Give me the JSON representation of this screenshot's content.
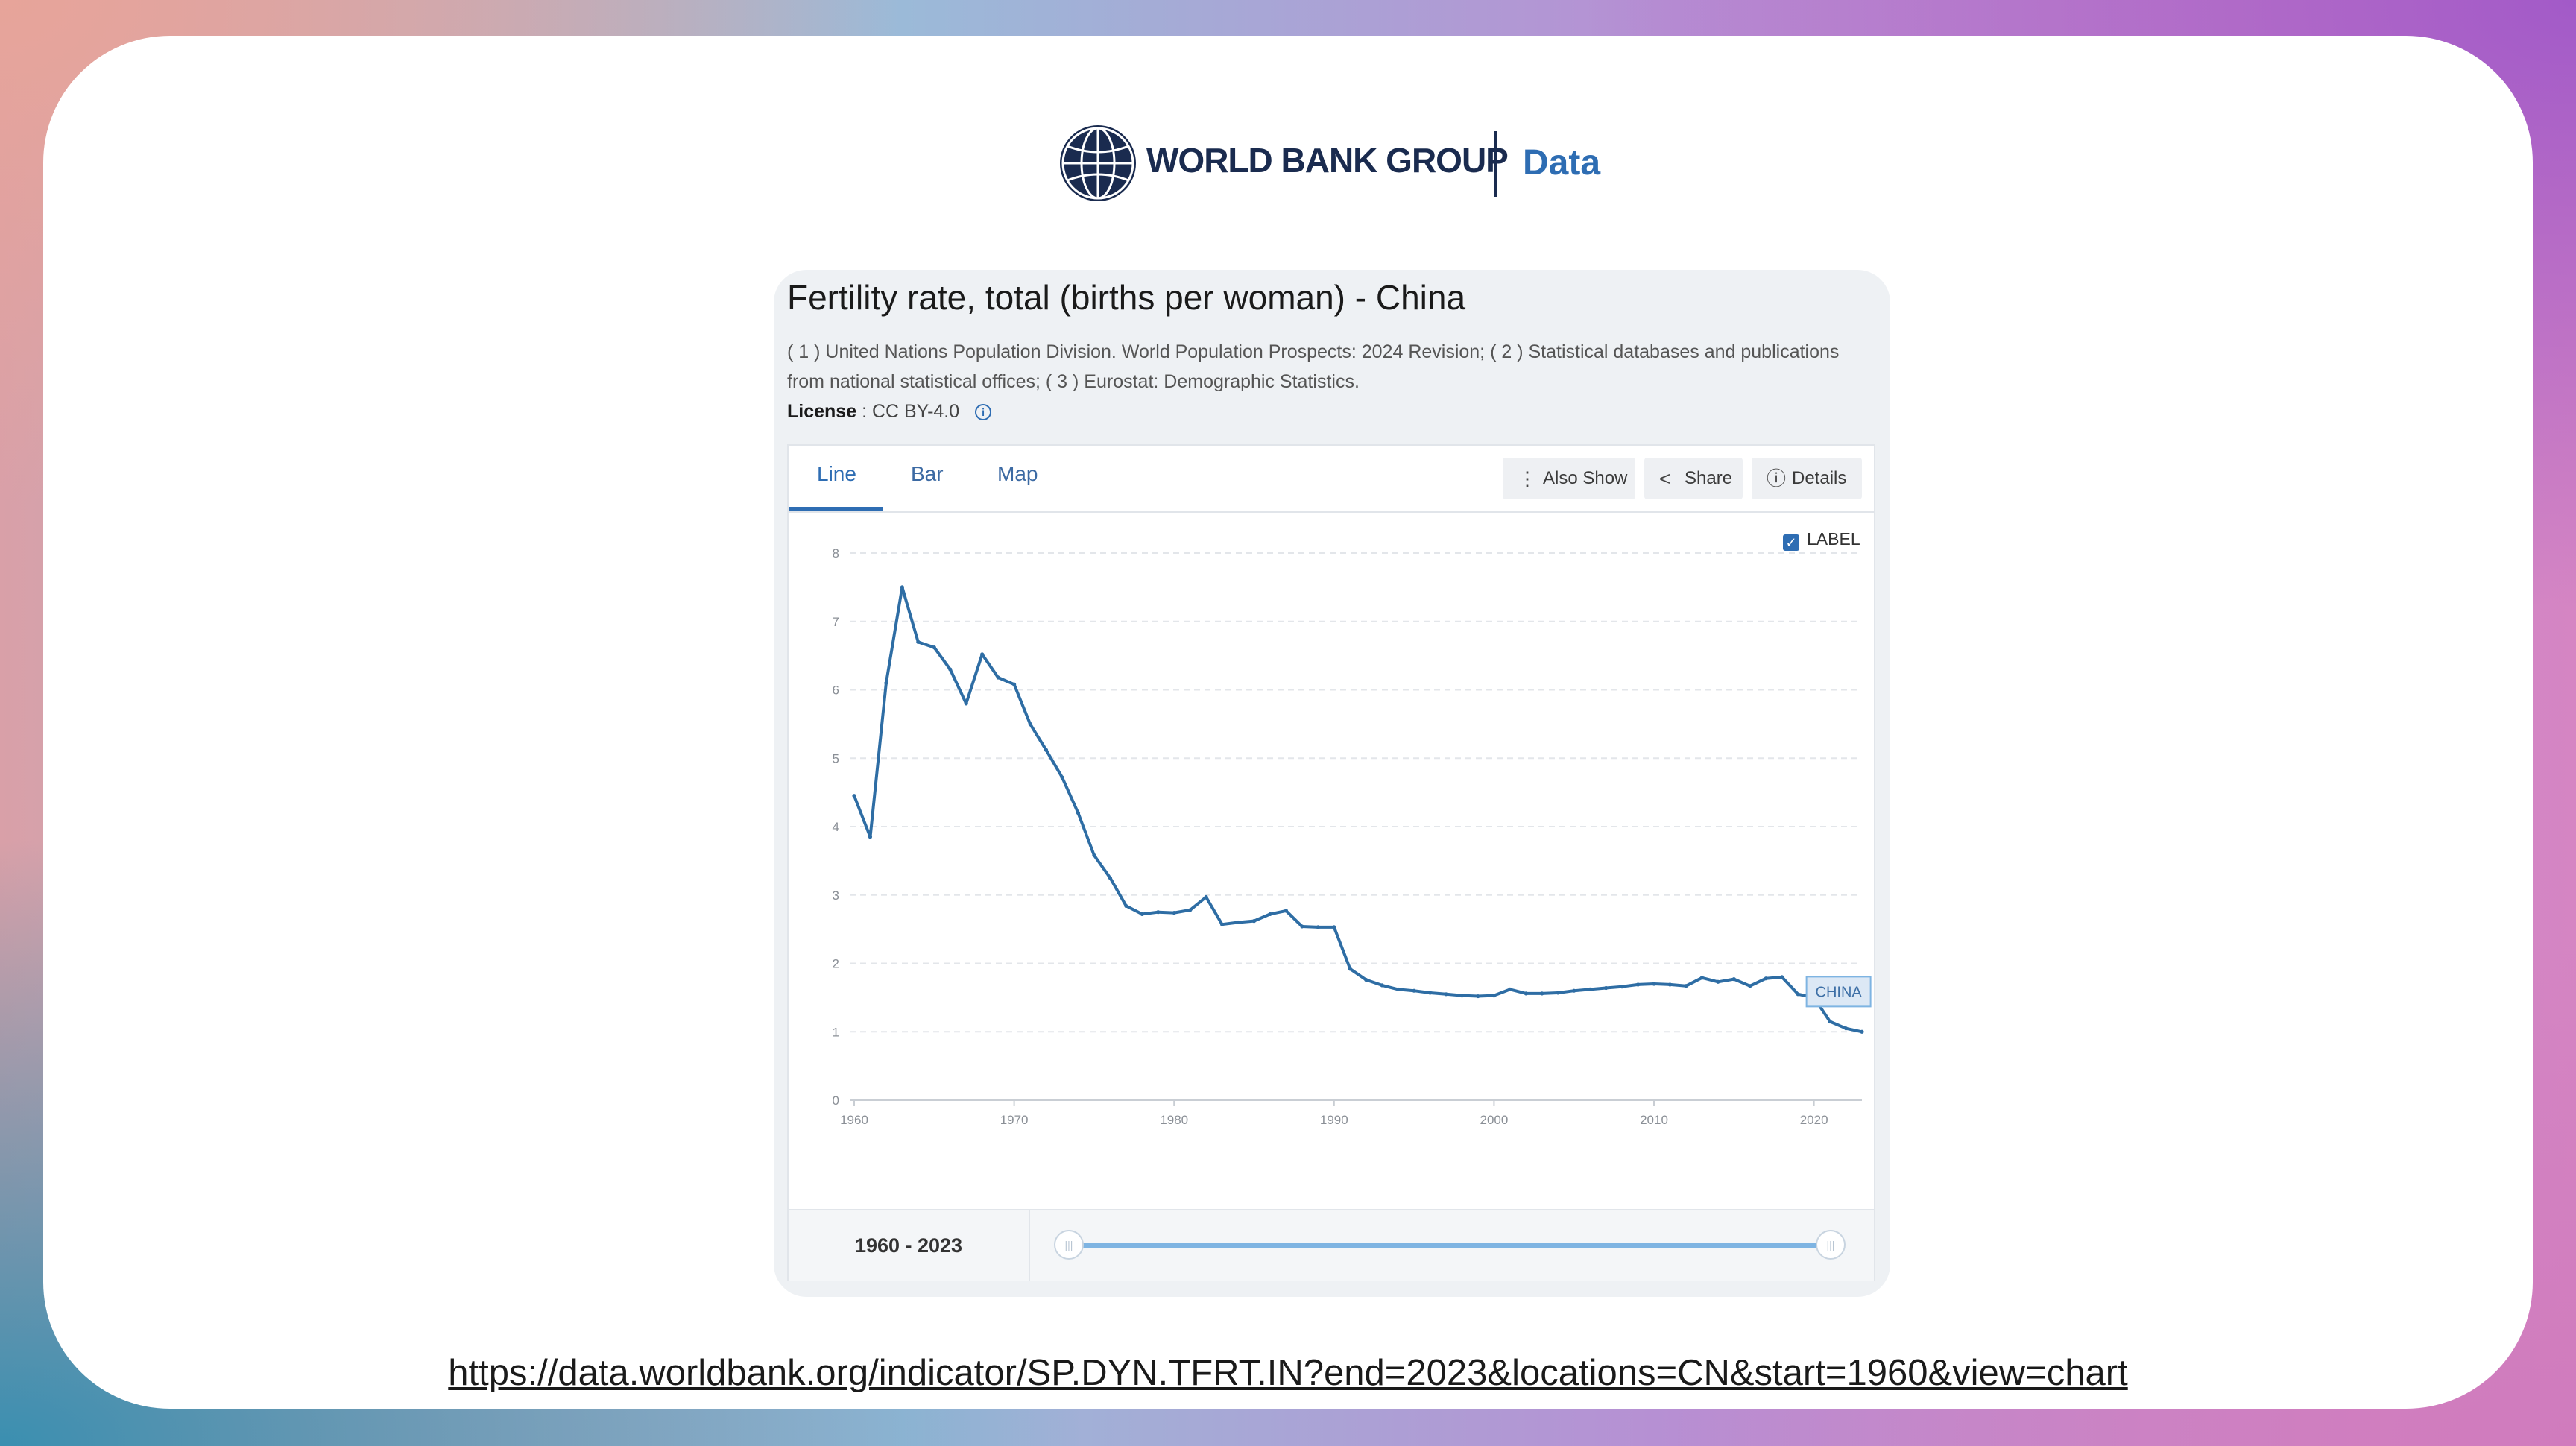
{
  "header": {
    "brand": "WORLD BANK GROUP",
    "section": "Data",
    "colors": {
      "brand_navy": "#1a2b4f",
      "accent_blue": "#2e6db3"
    }
  },
  "panel": {
    "title": "Fertility rate, total (births per woman) - China",
    "sources": "( 1 ) United Nations Population Division. World Population Prospects: 2024 Revision; ( 2 ) Statistical databases and publications from national statistical offices; ( 3 ) Eurostat: Demographic Statistics.",
    "license_label": "License",
    "license_value": ": CC BY-4.0"
  },
  "tabs": [
    {
      "label": "Line",
      "active": true
    },
    {
      "label": "Bar",
      "active": false
    },
    {
      "label": "Map",
      "active": false
    }
  ],
  "toolbar": {
    "also_show": "Also Show",
    "share": "Share",
    "details": "Details"
  },
  "label_toggle": {
    "text": "LABEL",
    "checked": true
  },
  "range": {
    "text": "1960 - 2023",
    "start": 1960,
    "end": 2023
  },
  "url": "https://data.worldbank.org/indicator/SP.DYN.TFRT.IN?end=2023&locations=CN&start=1960&view=chart",
  "chart_data": {
    "type": "line",
    "title": "",
    "xlabel": "",
    "ylabel": "",
    "xlim": [
      1960,
      2023
    ],
    "ylim": [
      0,
      8
    ],
    "grid": true,
    "x_ticks": [
      "1960",
      "1970",
      "1980",
      "1990",
      "2000",
      "2010",
      "2020"
    ],
    "y_ticks": [
      "0",
      "1",
      "2",
      "3",
      "4",
      "5",
      "6",
      "7",
      "8"
    ],
    "series": [
      {
        "name": "CHINA",
        "color": "#2e6da4",
        "x": [
          1960,
          1961,
          1962,
          1963,
          1964,
          1965,
          1966,
          1967,
          1968,
          1969,
          1970,
          1971,
          1972,
          1973,
          1974,
          1975,
          1976,
          1977,
          1978,
          1979,
          1980,
          1981,
          1982,
          1983,
          1984,
          1985,
          1986,
          1987,
          1988,
          1989,
          1990,
          1991,
          1992,
          1993,
          1994,
          1995,
          1996,
          1997,
          1998,
          1999,
          2000,
          2001,
          2002,
          2003,
          2004,
          2005,
          2006,
          2007,
          2008,
          2009,
          2010,
          2011,
          2012,
          2013,
          2014,
          2015,
          2016,
          2017,
          2018,
          2019,
          2020,
          2021,
          2022,
          2023
        ],
        "values": [
          4.45,
          3.85,
          6.1,
          7.5,
          6.7,
          6.62,
          6.3,
          5.8,
          6.52,
          6.18,
          6.08,
          5.5,
          5.12,
          4.72,
          4.2,
          3.58,
          3.25,
          2.84,
          2.72,
          2.75,
          2.74,
          2.78,
          2.97,
          2.57,
          2.6,
          2.62,
          2.72,
          2.77,
          2.54,
          2.53,
          2.53,
          1.92,
          1.76,
          1.68,
          1.62,
          1.6,
          1.57,
          1.55,
          1.53,
          1.52,
          1.53,
          1.62,
          1.56,
          1.56,
          1.57,
          1.6,
          1.62,
          1.64,
          1.66,
          1.69,
          1.7,
          1.69,
          1.67,
          1.79,
          1.73,
          1.77,
          1.67,
          1.78,
          1.8,
          1.55,
          1.5,
          1.15,
          1.05,
          1.0
        ]
      }
    ]
  }
}
